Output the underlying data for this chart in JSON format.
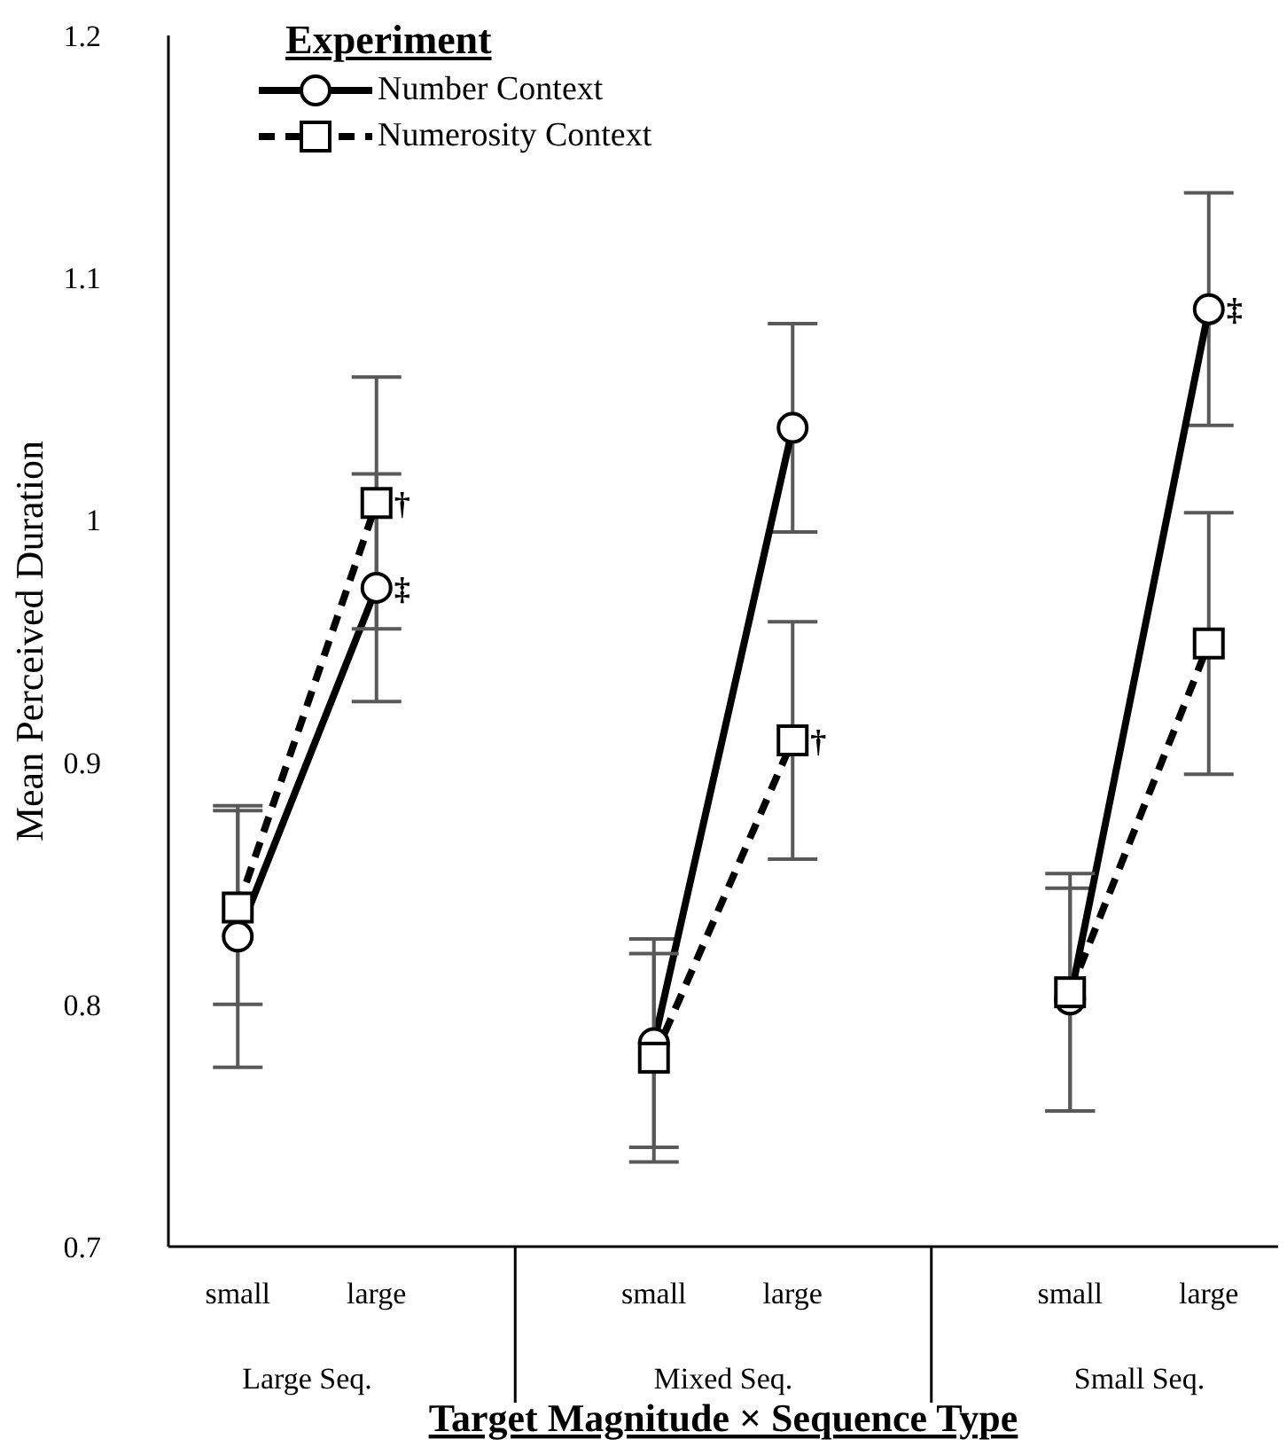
{
  "chart_data": {
    "type": "line",
    "categories": [
      "small",
      "large",
      "small",
      "large",
      "small",
      "large"
    ],
    "annotations": [
      "Large Seq.",
      "Mixed Seq.",
      "Small Seq."
    ],
    "xlabel": "Target Magnitude × Sequence Type",
    "ylabel": "Mean Perceived Duration",
    "legend_title": "Experiment",
    "series": [
      {
        "name": "Number Context",
        "color": "#000000",
        "marker": "circle",
        "line_style": "solid",
        "values": [
          0.828,
          0.972,
          0.784,
          1.038,
          0.802,
          1.087
        ],
        "errors": [
          0.054,
          0.047,
          0.043,
          0.043,
          0.046,
          0.048
        ],
        "value_labels": [
          null,
          "‡",
          null,
          null,
          null,
          "‡"
        ]
      },
      {
        "name": "Numerosity Context",
        "color": "#000000",
        "marker": "square",
        "line_style": "dashed",
        "values": [
          0.84,
          1.007,
          0.778,
          0.909,
          0.805,
          0.949
        ],
        "errors": [
          0.04,
          0.052,
          0.043,
          0.049,
          0.049,
          0.054
        ],
        "value_labels": [
          null,
          "†",
          null,
          "†",
          null,
          null
        ]
      }
    ],
    "ylim": [
      0.7,
      1.2
    ],
    "yticks": [
      0.7,
      0.8,
      0.9,
      1,
      1.1,
      1.2
    ],
    "grid": false,
    "legend": "top left"
  }
}
